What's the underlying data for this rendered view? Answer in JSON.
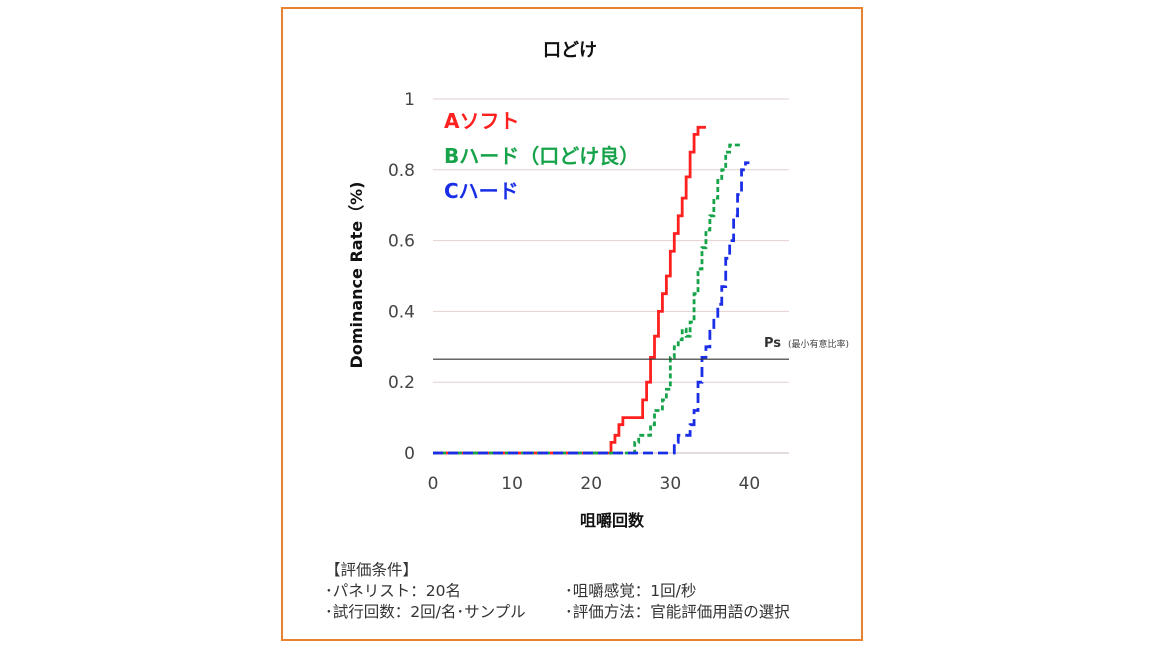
{
  "chart_data": {
    "type": "line",
    "title": "口どけ",
    "xlabel": "咀嚼回数",
    "ylabel": "Dominance Rate（%)",
    "xlim": [
      0,
      45
    ],
    "ylim": [
      0,
      1
    ],
    "x_ticks": [
      "0",
      "10",
      "20",
      "30",
      "40"
    ],
    "y_ticks": [
      "0",
      "0.2",
      "0.4",
      "0.6",
      "0.8",
      "1"
    ],
    "grid": "horizontal",
    "legend_placement": "top-left",
    "series": [
      {
        "name": "Aソフト",
        "color": "#ff2020",
        "style": "solid",
        "points": [
          [
            0,
            0
          ],
          [
            22,
            0
          ],
          [
            22.5,
            0.03
          ],
          [
            23,
            0.05
          ],
          [
            23.5,
            0.08
          ],
          [
            24,
            0.1
          ],
          [
            25,
            0.1
          ],
          [
            26,
            0.1
          ],
          [
            26.5,
            0.15
          ],
          [
            27,
            0.2
          ],
          [
            27.5,
            0.27
          ],
          [
            28,
            0.33
          ],
          [
            28.5,
            0.4
          ],
          [
            29,
            0.45
          ],
          [
            29.5,
            0.5
          ],
          [
            30,
            0.57
          ],
          [
            30.5,
            0.62
          ],
          [
            31,
            0.67
          ],
          [
            31.5,
            0.72
          ],
          [
            32,
            0.78
          ],
          [
            32.5,
            0.85
          ],
          [
            33,
            0.9
          ],
          [
            33.5,
            0.92
          ],
          [
            34.5,
            0.92
          ]
        ]
      },
      {
        "name": "Bハード（口どけ良）",
        "color": "#17a34a",
        "style": "dashed",
        "points": [
          [
            0,
            0
          ],
          [
            25,
            0
          ],
          [
            25.5,
            0.03
          ],
          [
            26,
            0.05
          ],
          [
            27,
            0.05
          ],
          [
            27.5,
            0.08
          ],
          [
            28,
            0.12
          ],
          [
            29,
            0.15
          ],
          [
            29.5,
            0.18
          ],
          [
            30,
            0.27
          ],
          [
            30.5,
            0.3
          ],
          [
            31,
            0.32
          ],
          [
            31.5,
            0.35
          ],
          [
            32,
            0.33
          ],
          [
            32.5,
            0.37
          ],
          [
            33,
            0.45
          ],
          [
            33.5,
            0.52
          ],
          [
            34,
            0.58
          ],
          [
            34.5,
            0.63
          ],
          [
            35,
            0.67
          ],
          [
            35.5,
            0.72
          ],
          [
            36,
            0.77
          ],
          [
            36.5,
            0.8
          ],
          [
            37,
            0.85
          ],
          [
            37.5,
            0.87
          ],
          [
            39,
            0.87
          ]
        ]
      },
      {
        "name": "Cハード",
        "color": "#1a2ee8",
        "style": "dashed",
        "points": [
          [
            0,
            0
          ],
          [
            30,
            0
          ],
          [
            30.5,
            0.03
          ],
          [
            31,
            0.05
          ],
          [
            32,
            0.05
          ],
          [
            32.5,
            0.08
          ],
          [
            33,
            0.12
          ],
          [
            33.5,
            0.2
          ],
          [
            34,
            0.27
          ],
          [
            34.5,
            0.3
          ],
          [
            35,
            0.35
          ],
          [
            35.5,
            0.38
          ],
          [
            36,
            0.42
          ],
          [
            36.5,
            0.47
          ],
          [
            37,
            0.55
          ],
          [
            37.5,
            0.6
          ],
          [
            38,
            0.67
          ],
          [
            38.5,
            0.73
          ],
          [
            39,
            0.8
          ],
          [
            39.5,
            0.82
          ],
          [
            40,
            0.82
          ]
        ]
      }
    ],
    "threshold": {
      "label": "Ps",
      "sublabel": "(最小有意比率)",
      "value": 0.265,
      "color": "#333333"
    }
  },
  "conditions": {
    "heading": "【評価条件】",
    "panelists": "･パネリスト：20名",
    "chewing_sense": "･咀嚼感覚：1回/秒",
    "trials": "･試行回数：2回/名･サンプル",
    "method": "･評価方法：官能評価用語の選択"
  }
}
